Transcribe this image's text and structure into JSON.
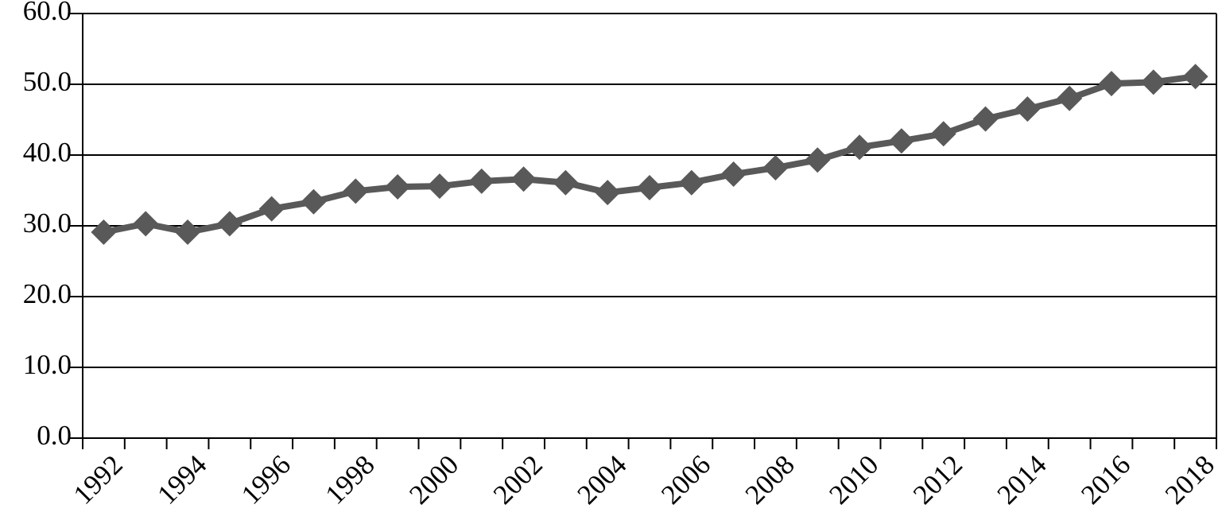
{
  "chart_data": {
    "type": "line",
    "categories": [
      "1992",
      null,
      "1994",
      null,
      "1996",
      null,
      "1998",
      null,
      "2000",
      null,
      "2002",
      null,
      "2004",
      null,
      "2006",
      null,
      "2008",
      null,
      "2010",
      null,
      "2012",
      null,
      "2014",
      null,
      "2016",
      null,
      "2018"
    ],
    "values": [
      29.1,
      30.3,
      29.1,
      30.3,
      32.4,
      33.4,
      34.9,
      35.5,
      35.6,
      36.3,
      36.6,
      36.1,
      34.7,
      35.4,
      36.1,
      37.3,
      38.2,
      39.3,
      41.1,
      42.0,
      43.0,
      45.1,
      46.5,
      48.0,
      50.1,
      50.3,
      51.1
    ],
    "color": "#595959",
    "ylim": [
      0,
      60
    ],
    "yticks": [
      {
        "value": 0,
        "label": "0.0"
      },
      {
        "value": 10,
        "label": "10.0"
      },
      {
        "value": 20,
        "label": "20.0"
      },
      {
        "value": 30,
        "label": "30.0"
      },
      {
        "value": 40,
        "label": "40.0"
      },
      {
        "value": 50,
        "label": "50.0"
      },
      {
        "value": 60,
        "label": "60.0"
      }
    ],
    "grid": true
  }
}
